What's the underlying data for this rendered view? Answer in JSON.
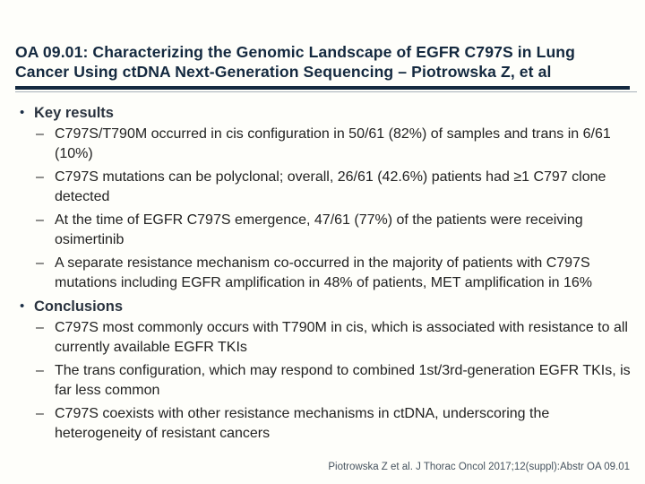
{
  "slide": {
    "title": "OA 09.01: Characterizing the Genomic Landscape of EGFR C797S in Lung Cancer Using ctDNA Next-Generation Sequencing – Piotrowska Z, et al",
    "bullet_glyphs": {
      "level1": "•",
      "level2": "–"
    },
    "sections": [
      {
        "heading": "Key results",
        "bullets": [
          "C797S/T790M occurred in cis configuration in 50/61 (82%) of samples and trans in 6/61 (10%)",
          "C797S mutations can be polyclonal; overall, 26/61 (42.6%) patients had ≥1 C797 clone detected",
          "At the time of EGFR C797S emergence, 47/61 (77%) of the patients were receiving osimertinib",
          "A separate resistance mechanism co-occurred in the majority of patients with C797S mutations including EGFR amplification in 48% of patients, MET amplification in 16%"
        ]
      },
      {
        "heading": "Conclusions",
        "bullets": [
          "C797S most commonly occurs with T790M in cis, which is associated with resistance to all currently available EGFR TKIs",
          "The trans configuration, which may respond to combined 1st/3rd-generation EGFR TKIs, is far less common",
          "C797S coexists with other resistance mechanisms in ctDNA, underscoring the heterogeneity of resistant cancers"
        ]
      }
    ],
    "citation": "Piotrowska Z et al. J Thorac Oncol 2017;12(suppl):Abstr OA 09.01",
    "colors": {
      "title": "#14293f",
      "divider": "#14293f",
      "heading": "#2a333f",
      "body": "#222222",
      "citation": "#46535f"
    }
  }
}
